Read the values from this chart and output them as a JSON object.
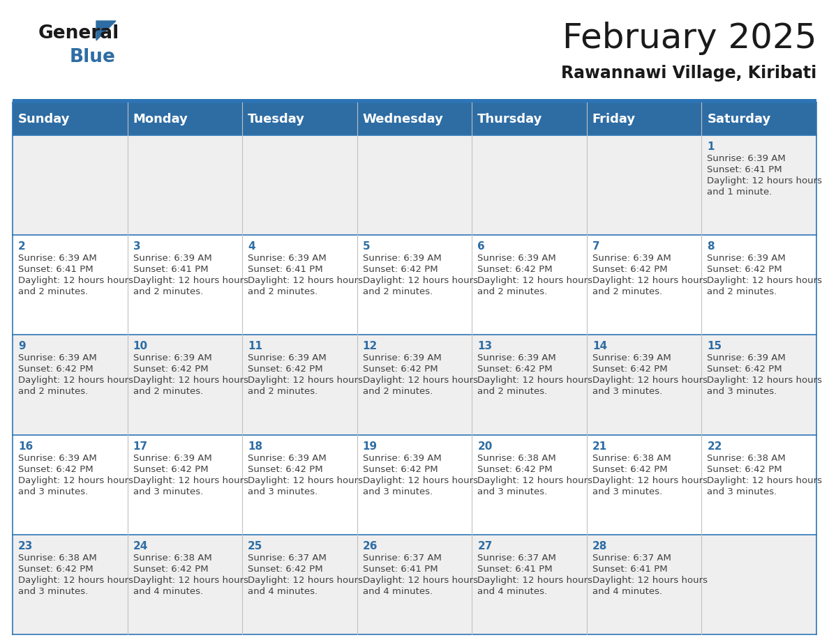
{
  "title": "February 2025",
  "subtitle": "Rawannawi Village, Kiribati",
  "header_bg": "#2E6DA4",
  "header_text_color": "#FFFFFF",
  "day_names": [
    "Sunday",
    "Monday",
    "Tuesday",
    "Wednesday",
    "Thursday",
    "Friday",
    "Saturday"
  ],
  "bg_color": "#FFFFFF",
  "cell_bg_row0": "#EFEFEF",
  "cell_bg_row1": "#FFFFFF",
  "cell_bg_row2": "#EFEFEF",
  "cell_bg_row3": "#FFFFFF",
  "cell_bg_row4": "#EFEFEF",
  "border_color": "#2E75B6",
  "day_num_color": "#2E6DA4",
  "text_color": "#404040",
  "logo_general_color": "#1a1a1a",
  "logo_blue_color": "#2E6DA4",
  "title_fontsize": 36,
  "subtitle_fontsize": 17,
  "header_fontsize": 13,
  "day_num_fontsize": 11,
  "cell_text_fontsize": 9.5,
  "days_data": [
    {
      "day": 1,
      "col": 6,
      "row": 0,
      "sunrise": "6:39 AM",
      "sunset": "6:41 PM",
      "daylight": "12 hours and 1 minute."
    },
    {
      "day": 2,
      "col": 0,
      "row": 1,
      "sunrise": "6:39 AM",
      "sunset": "6:41 PM",
      "daylight": "12 hours and 2 minutes."
    },
    {
      "day": 3,
      "col": 1,
      "row": 1,
      "sunrise": "6:39 AM",
      "sunset": "6:41 PM",
      "daylight": "12 hours and 2 minutes."
    },
    {
      "day": 4,
      "col": 2,
      "row": 1,
      "sunrise": "6:39 AM",
      "sunset": "6:41 PM",
      "daylight": "12 hours and 2 minutes."
    },
    {
      "day": 5,
      "col": 3,
      "row": 1,
      "sunrise": "6:39 AM",
      "sunset": "6:42 PM",
      "daylight": "12 hours and 2 minutes."
    },
    {
      "day": 6,
      "col": 4,
      "row": 1,
      "sunrise": "6:39 AM",
      "sunset": "6:42 PM",
      "daylight": "12 hours and 2 minutes."
    },
    {
      "day": 7,
      "col": 5,
      "row": 1,
      "sunrise": "6:39 AM",
      "sunset": "6:42 PM",
      "daylight": "12 hours and 2 minutes."
    },
    {
      "day": 8,
      "col": 6,
      "row": 1,
      "sunrise": "6:39 AM",
      "sunset": "6:42 PM",
      "daylight": "12 hours and 2 minutes."
    },
    {
      "day": 9,
      "col": 0,
      "row": 2,
      "sunrise": "6:39 AM",
      "sunset": "6:42 PM",
      "daylight": "12 hours and 2 minutes."
    },
    {
      "day": 10,
      "col": 1,
      "row": 2,
      "sunrise": "6:39 AM",
      "sunset": "6:42 PM",
      "daylight": "12 hours and 2 minutes."
    },
    {
      "day": 11,
      "col": 2,
      "row": 2,
      "sunrise": "6:39 AM",
      "sunset": "6:42 PM",
      "daylight": "12 hours and 2 minutes."
    },
    {
      "day": 12,
      "col": 3,
      "row": 2,
      "sunrise": "6:39 AM",
      "sunset": "6:42 PM",
      "daylight": "12 hours and 2 minutes."
    },
    {
      "day": 13,
      "col": 4,
      "row": 2,
      "sunrise": "6:39 AM",
      "sunset": "6:42 PM",
      "daylight": "12 hours and 2 minutes."
    },
    {
      "day": 14,
      "col": 5,
      "row": 2,
      "sunrise": "6:39 AM",
      "sunset": "6:42 PM",
      "daylight": "12 hours and 3 minutes."
    },
    {
      "day": 15,
      "col": 6,
      "row": 2,
      "sunrise": "6:39 AM",
      "sunset": "6:42 PM",
      "daylight": "12 hours and 3 minutes."
    },
    {
      "day": 16,
      "col": 0,
      "row": 3,
      "sunrise": "6:39 AM",
      "sunset": "6:42 PM",
      "daylight": "12 hours and 3 minutes."
    },
    {
      "day": 17,
      "col": 1,
      "row": 3,
      "sunrise": "6:39 AM",
      "sunset": "6:42 PM",
      "daylight": "12 hours and 3 minutes."
    },
    {
      "day": 18,
      "col": 2,
      "row": 3,
      "sunrise": "6:39 AM",
      "sunset": "6:42 PM",
      "daylight": "12 hours and 3 minutes."
    },
    {
      "day": 19,
      "col": 3,
      "row": 3,
      "sunrise": "6:39 AM",
      "sunset": "6:42 PM",
      "daylight": "12 hours and 3 minutes."
    },
    {
      "day": 20,
      "col": 4,
      "row": 3,
      "sunrise": "6:38 AM",
      "sunset": "6:42 PM",
      "daylight": "12 hours and 3 minutes."
    },
    {
      "day": 21,
      "col": 5,
      "row": 3,
      "sunrise": "6:38 AM",
      "sunset": "6:42 PM",
      "daylight": "12 hours and 3 minutes."
    },
    {
      "day": 22,
      "col": 6,
      "row": 3,
      "sunrise": "6:38 AM",
      "sunset": "6:42 PM",
      "daylight": "12 hours and 3 minutes."
    },
    {
      "day": 23,
      "col": 0,
      "row": 4,
      "sunrise": "6:38 AM",
      "sunset": "6:42 PM",
      "daylight": "12 hours and 3 minutes."
    },
    {
      "day": 24,
      "col": 1,
      "row": 4,
      "sunrise": "6:38 AM",
      "sunset": "6:42 PM",
      "daylight": "12 hours and 4 minutes."
    },
    {
      "day": 25,
      "col": 2,
      "row": 4,
      "sunrise": "6:37 AM",
      "sunset": "6:42 PM",
      "daylight": "12 hours and 4 minutes."
    },
    {
      "day": 26,
      "col": 3,
      "row": 4,
      "sunrise": "6:37 AM",
      "sunset": "6:41 PM",
      "daylight": "12 hours and 4 minutes."
    },
    {
      "day": 27,
      "col": 4,
      "row": 4,
      "sunrise": "6:37 AM",
      "sunset": "6:41 PM",
      "daylight": "12 hours and 4 minutes."
    },
    {
      "day": 28,
      "col": 5,
      "row": 4,
      "sunrise": "6:37 AM",
      "sunset": "6:41 PM",
      "daylight": "12 hours and 4 minutes."
    }
  ]
}
